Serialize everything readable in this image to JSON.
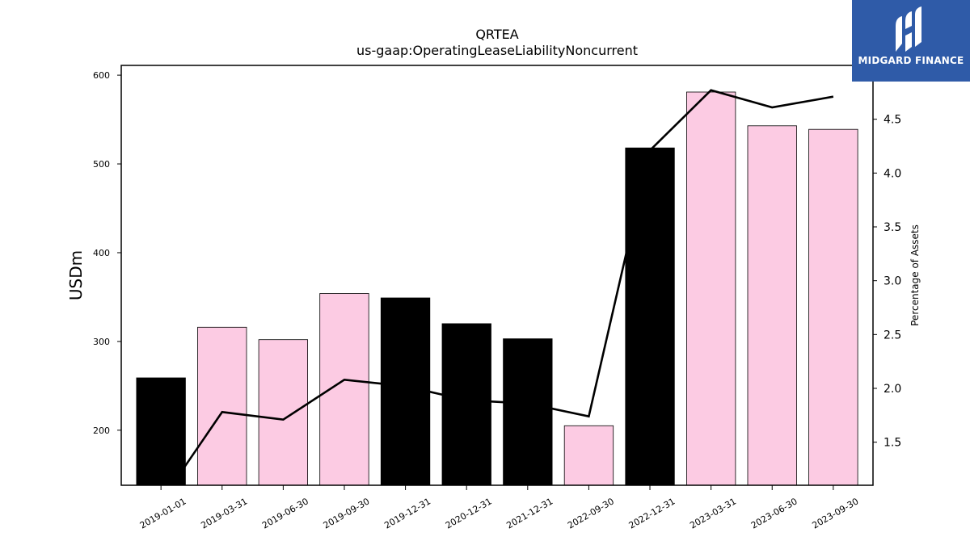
{
  "chart_data": {
    "type": "bar",
    "title": "QRTEA",
    "subtitle": "us-gaap:OperatingLeaseLiabilityNoncurrent",
    "ylabel": "USDm",
    "ylabel_right": "Percentage of Assets",
    "categories": [
      "2019-01-01",
      "2019-03-31",
      "2019-06-30",
      "2019-09-30",
      "2019-12-31",
      "2020-12-31",
      "2021-12-31",
      "2022-09-30",
      "2022-12-31",
      "2023-03-31",
      "2023-06-30",
      "2023-09-30"
    ],
    "values": [
      259,
      316,
      302,
      354,
      349,
      320,
      303,
      205,
      518,
      581,
      543,
      539
    ],
    "bar_colors": [
      "#000000",
      "#fccbe3",
      "#fccbe3",
      "#fccbe3",
      "#000000",
      "#000000",
      "#000000",
      "#fccbe3",
      "#000000",
      "#fccbe3",
      "#fccbe3",
      "#fccbe3"
    ],
    "pct_of_assets": [
      0.95,
      1.78,
      1.71,
      2.08,
      2.02,
      1.89,
      1.86,
      1.74,
      4.21,
      4.77,
      4.61,
      4.71
    ],
    "ylim": [
      138,
      611
    ],
    "ylim_right": [
      1.1,
      5.0
    ],
    "yticks": [
      200,
      300,
      400,
      500,
      600
    ],
    "yticks_right": [
      1.5,
      2.0,
      2.5,
      3.0,
      3.5,
      4.0,
      4.5
    ],
    "grid": false,
    "legend": "none"
  },
  "logo": {
    "text": "MIDGARD FINANCE",
    "icon": "midgard-logo-mark-icon",
    "background": "#2f5ba8"
  }
}
